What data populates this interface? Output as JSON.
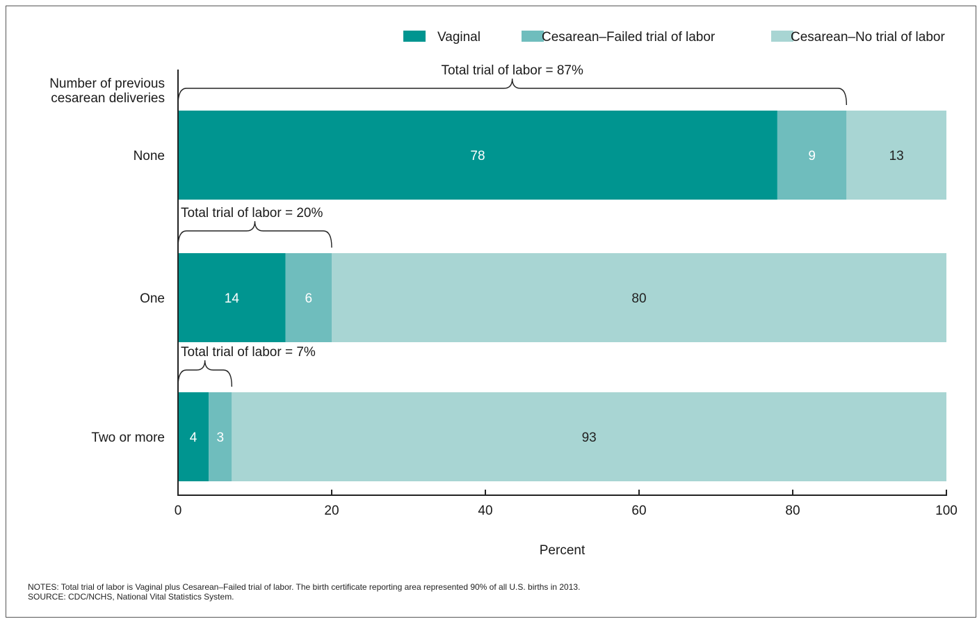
{
  "chart_data": {
    "type": "bar",
    "orientation": "horizontal",
    "stacked": true,
    "y_header": "Number of previous cesarean deliveries",
    "y_header_lines": [
      "Number of previous",
      "cesarean deliveries"
    ],
    "categories": [
      "None",
      "One",
      "Two or more"
    ],
    "series": [
      {
        "name": "Vaginal",
        "color": "#009590",
        "label_color": "#ffffff",
        "values": [
          78,
          14,
          4
        ]
      },
      {
        "name": "Cesarean–Failed trial of labor",
        "color": "#6fbdbd",
        "label_color": "#ffffff",
        "values": [
          9,
          6,
          3
        ]
      },
      {
        "name": "Cesarean–No trial of labor",
        "color": "#a8d5d3",
        "label_color": "#222222",
        "values": [
          13,
          80,
          93
        ]
      }
    ],
    "annotations": [
      {
        "category": "None",
        "text": "Total trial of labor = 87%",
        "value": 87
      },
      {
        "category": "One",
        "text": "Total trial of labor = 20%",
        "value": 20
      },
      {
        "category": "Two or more",
        "text": "Total trial of labor = 7%",
        "value": 7
      }
    ],
    "xlabel": "Percent",
    "xlim": [
      0,
      100
    ],
    "xticks": [
      0,
      20,
      40,
      60,
      80,
      100
    ],
    "legend_position": "top-right",
    "grid": false
  },
  "footer": {
    "notes": "NOTES: Total trial of labor is Vaginal plus Cesarean–Failed trial of labor. The birth certificate reporting area represented 90% of all U.S. births in 2013.",
    "source": "SOURCE: CDC/NCHS, National Vital Statistics System."
  }
}
